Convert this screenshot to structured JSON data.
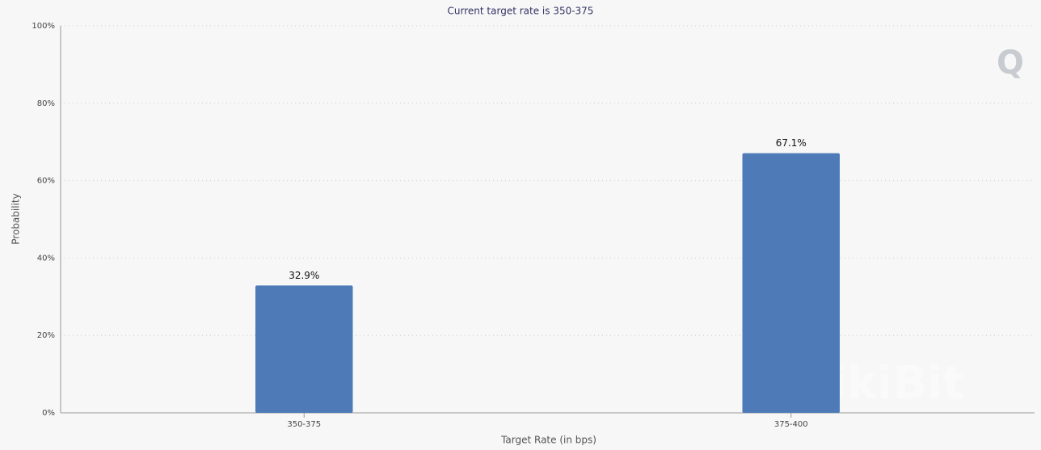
{
  "chart_data": {
    "type": "bar",
    "title": "Current target rate is 350-375",
    "categories": [
      "350-375",
      "375-400"
    ],
    "values": [
      32.9,
      67.1
    ],
    "value_labels": [
      "32.9%",
      "67.1%"
    ],
    "color": "#4e7bb8",
    "x_label": "Target Rate (in bps)",
    "y_label": "Probability",
    "ylim": [
      0,
      100
    ],
    "yticks": [
      {
        "value": 0,
        "label": "0%"
      },
      {
        "value": 20,
        "label": "20%"
      },
      {
        "value": 40,
        "label": "40%"
      },
      {
        "value": 60,
        "label": "60%"
      },
      {
        "value": 80,
        "label": "80%"
      },
      {
        "value": 100,
        "label": "100%"
      }
    ],
    "grid": true,
    "watermark": "WikiBit"
  }
}
